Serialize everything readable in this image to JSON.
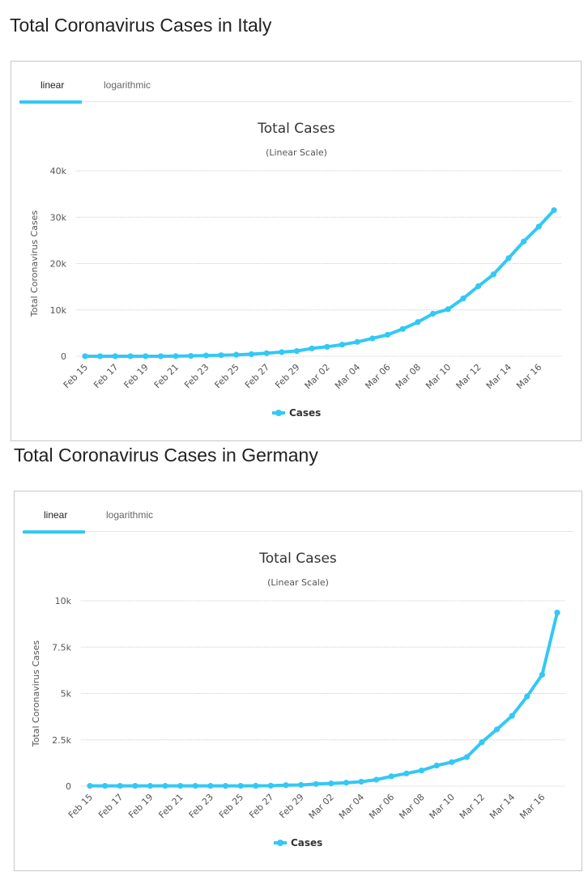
{
  "sections": [
    {
      "heading": "Total Coronavirus Cases in Italy",
      "tabs": [
        "linear",
        "logarithmic"
      ],
      "active_tab": "linear"
    },
    {
      "heading": "Total Coronavirus Cases in Germany",
      "tabs": [
        "linear",
        "logarithmic"
      ],
      "active_tab": "linear"
    }
  ],
  "colors": {
    "series": "#33c8f5",
    "grid": "#cccccc"
  },
  "chart_data": [
    {
      "type": "line",
      "title": "Total Cases",
      "subtitle": "(Linear Scale)",
      "xlabel": "",
      "ylabel": "Total Coronavirus Cases",
      "ylim": [
        0,
        40000
      ],
      "yticks": [
        0,
        10000,
        20000,
        30000,
        40000
      ],
      "ytick_labels": [
        "0",
        "10k",
        "20k",
        "30k",
        "40k"
      ],
      "x": [
        "Feb 15",
        "Feb 16",
        "Feb 17",
        "Feb 18",
        "Feb 19",
        "Feb 20",
        "Feb 21",
        "Feb 22",
        "Feb 23",
        "Feb 24",
        "Feb 25",
        "Feb 26",
        "Feb 27",
        "Feb 28",
        "Feb 29",
        "Mar 01",
        "Mar 02",
        "Mar 03",
        "Mar 04",
        "Mar 05",
        "Mar 06",
        "Mar 07",
        "Mar 08",
        "Mar 09",
        "Mar 10",
        "Mar 11",
        "Mar 12",
        "Mar 13",
        "Mar 14",
        "Mar 15",
        "Mar 16",
        "Mar 17"
      ],
      "xtick_labels": [
        "Feb 15",
        "Feb 17",
        "Feb 19",
        "Feb 21",
        "Feb 23",
        "Feb 25",
        "Feb 27",
        "Feb 29",
        "Mar 02",
        "Mar 04",
        "Mar 06",
        "Mar 08",
        "Mar 10",
        "Mar 12",
        "Mar 14",
        "Mar 16"
      ],
      "series": [
        {
          "name": "Cases",
          "values": [
            3,
            3,
            3,
            3,
            3,
            3,
            20,
            79,
            152,
            229,
            322,
            453,
            655,
            888,
            1128,
            1694,
            2036,
            2502,
            3089,
            3858,
            4636,
            5883,
            7375,
            9172,
            10149,
            12462,
            15113,
            17660,
            21157,
            24747,
            27980,
            31506
          ]
        }
      ],
      "legend": "bottom-center"
    },
    {
      "type": "line",
      "title": "Total Cases",
      "subtitle": "(Linear Scale)",
      "xlabel": "",
      "ylabel": "Total Coronavirus Cases",
      "ylim": [
        0,
        10000
      ],
      "yticks": [
        0,
        2500,
        5000,
        7500,
        10000
      ],
      "ytick_labels": [
        "0",
        "2.5k",
        "5k",
        "7.5k",
        "10k"
      ],
      "x": [
        "Feb 15",
        "Feb 16",
        "Feb 17",
        "Feb 18",
        "Feb 19",
        "Feb 20",
        "Feb 21",
        "Feb 22",
        "Feb 23",
        "Feb 24",
        "Feb 25",
        "Feb 26",
        "Feb 27",
        "Feb 28",
        "Feb 29",
        "Mar 01",
        "Mar 02",
        "Mar 03",
        "Mar 04",
        "Mar 05",
        "Mar 06",
        "Mar 07",
        "Mar 08",
        "Mar 09",
        "Mar 10",
        "Mar 11",
        "Mar 12",
        "Mar 13",
        "Mar 14",
        "Mar 15",
        "Mar 16",
        "Mar 17"
      ],
      "xtick_labels": [
        "Feb 15",
        "Feb 17",
        "Feb 19",
        "Feb 21",
        "Feb 23",
        "Feb 25",
        "Feb 27",
        "Feb 29",
        "Mar 02",
        "Mar 04",
        "Mar 06",
        "Mar 08",
        "Mar 10",
        "Mar 12",
        "Mar 14",
        "Mar 16"
      ],
      "series": [
        {
          "name": "Cases",
          "values": [
            16,
            16,
            16,
            16,
            16,
            16,
            16,
            16,
            16,
            16,
            18,
            21,
            26,
            53,
            66,
            117,
            150,
            188,
            240,
            349,
            534,
            684,
            847,
            1112,
            1296,
            1567,
            2369,
            3062,
            3795,
            4838,
            6012,
            9360
          ]
        }
      ],
      "legend": "bottom-center"
    }
  ]
}
